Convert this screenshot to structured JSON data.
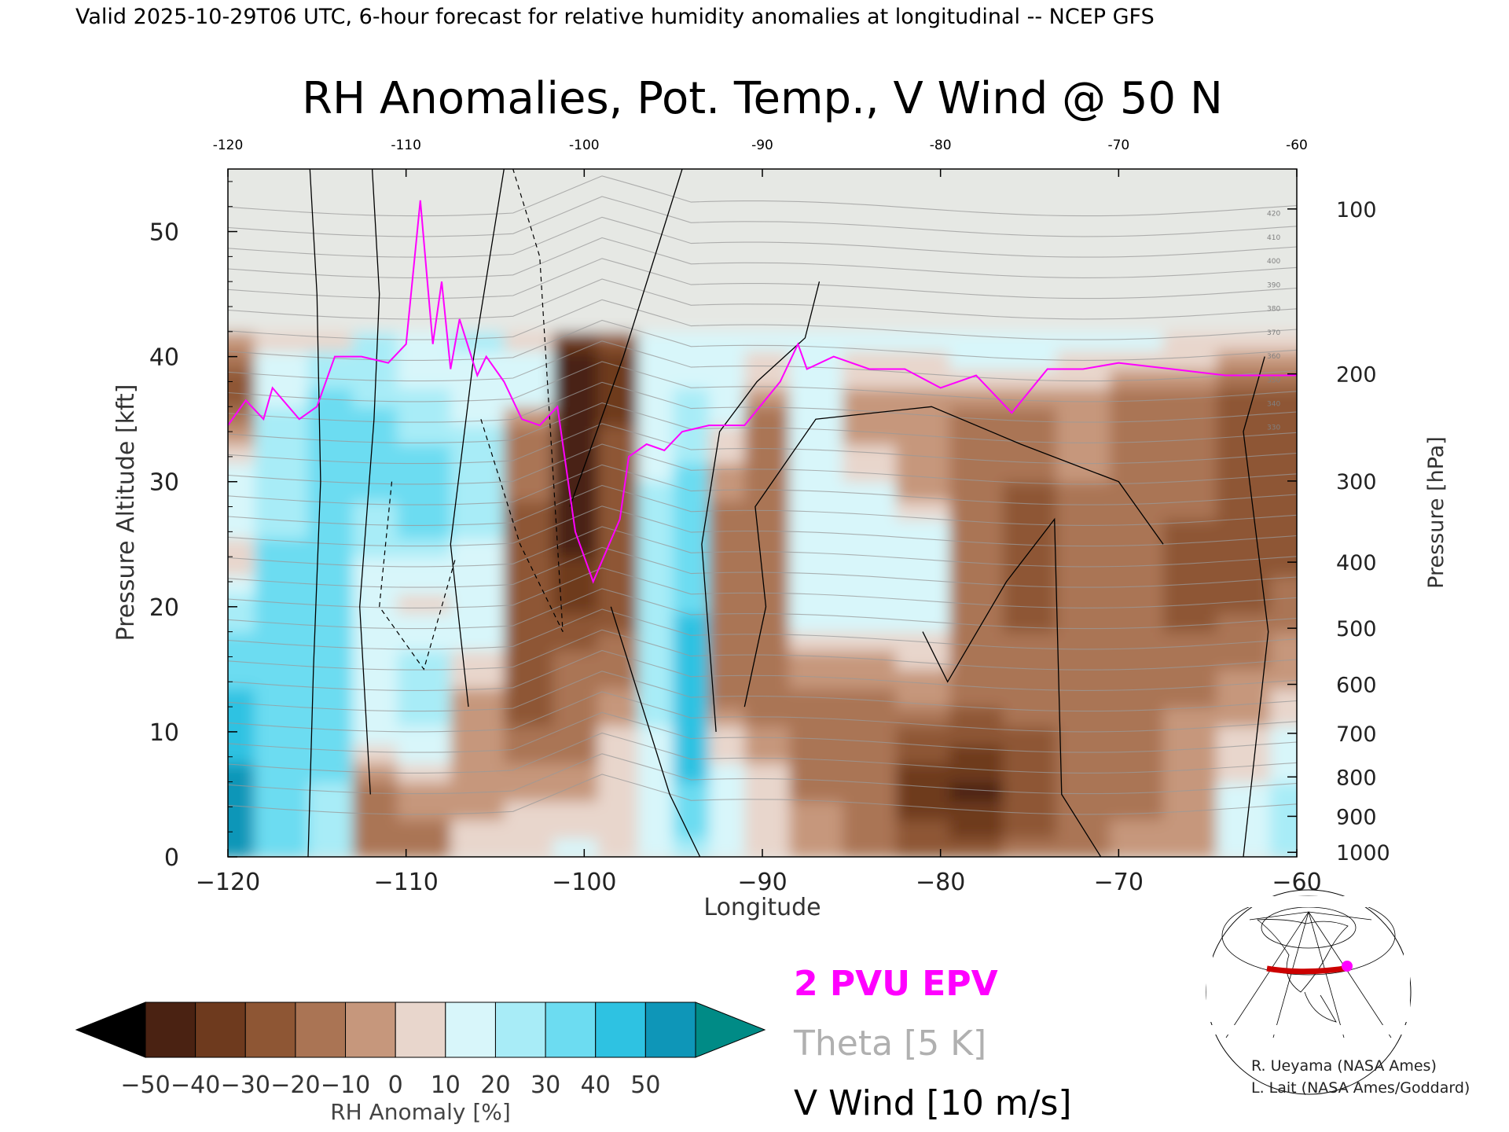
{
  "header": "Valid 2025-10-29T06 UTC, 6-hour forecast for relative humidity anomalies at longitudinal -- NCEP GFS",
  "colors": {
    "epv": "#ff00ff",
    "theta": "#a0a0a0",
    "wind": "#000000",
    "path_line": "#cc0000",
    "path_marker": "#ff00ff"
  },
  "chart_data": {
    "type": "heatmap",
    "title": "RH Anomalies, Pot. Temp., V Wind @ 50 N",
    "xlabel": "Longitude",
    "ylabel_left": "Pressure Altitude [kft]",
    "ylabel_right": "Pressure [hPa]",
    "xlim": [
      -120,
      -60
    ],
    "ylim": [
      0,
      55
    ],
    "x_ticks": [
      -120,
      -110,
      -100,
      -90,
      -80,
      -70,
      -60
    ],
    "x_tick_labels_bottom": [
      "−120",
      "−110",
      "−100",
      "−90",
      "−80",
      "−70",
      "−60"
    ],
    "x_tick_labels_top": [
      "-120",
      "-110",
      "-100",
      "-90",
      "-80",
      "-70",
      "-60"
    ],
    "y_ticks": [
      0,
      10,
      20,
      30,
      40,
      50
    ],
    "pressure_ticks": [
      {
        "hpa": 100,
        "label": "100"
      },
      {
        "hpa": 200,
        "label": "200"
      },
      {
        "hpa": 300,
        "label": "300"
      },
      {
        "hpa": 400,
        "label": "400"
      },
      {
        "hpa": 500,
        "label": "500"
      },
      {
        "hpa": 600,
        "label": "600"
      },
      {
        "hpa": 700,
        "label": "700"
      },
      {
        "hpa": 800,
        "label": "800"
      },
      {
        "hpa": 900,
        "label": "900"
      },
      {
        "hpa": 1000,
        "label": "1000"
      }
    ],
    "theta_labels": [
      "420",
      "410",
      "400",
      "390",
      "380",
      "370",
      "360",
      "350",
      "340",
      "330"
    ],
    "rh_columns": [
      {
        "lon": -120,
        "profile": [
          [
            0,
            50
          ],
          [
            8,
            50
          ],
          [
            18,
            30
          ],
          [
            24,
            5
          ],
          [
            30,
            20
          ],
          [
            38,
            -30
          ],
          [
            42,
            0
          ]
        ]
      },
      {
        "lon": -117,
        "profile": [
          [
            0,
            35
          ],
          [
            10,
            30
          ],
          [
            25,
            30
          ],
          [
            34,
            25
          ],
          [
            40,
            10
          ],
          [
            42,
            0
          ]
        ]
      },
      {
        "lon": -114,
        "profile": [
          [
            0,
            20
          ],
          [
            10,
            35
          ],
          [
            25,
            40
          ],
          [
            35,
            35
          ],
          [
            40,
            25
          ],
          [
            42,
            0
          ]
        ]
      },
      {
        "lon": -112,
        "profile": [
          [
            0,
            -10
          ],
          [
            5,
            -20
          ],
          [
            10,
            20
          ],
          [
            20,
            10
          ],
          [
            28,
            30
          ],
          [
            36,
            30
          ],
          [
            40,
            20
          ]
        ]
      },
      {
        "lon": -109,
        "profile": [
          [
            0,
            -20
          ],
          [
            8,
            10
          ],
          [
            14,
            30
          ],
          [
            20,
            5
          ],
          [
            28,
            40
          ],
          [
            36,
            25
          ],
          [
            40,
            15
          ]
        ]
      },
      {
        "lon": -106,
        "profile": [
          [
            0,
            5
          ],
          [
            10,
            -10
          ],
          [
            16,
            10
          ],
          [
            24,
            15
          ],
          [
            30,
            30
          ],
          [
            36,
            15
          ],
          [
            40,
            20
          ]
        ]
      },
      {
        "lon": -103,
        "profile": [
          [
            0,
            10
          ],
          [
            8,
            -10
          ],
          [
            14,
            -30
          ],
          [
            20,
            -30
          ],
          [
            28,
            -20
          ],
          [
            34,
            -10
          ],
          [
            38,
            20
          ],
          [
            42,
            0
          ]
        ]
      },
      {
        "lon": -100.5,
        "profile": [
          [
            0,
            15
          ],
          [
            8,
            -10
          ],
          [
            16,
            -20
          ],
          [
            24,
            -40
          ],
          [
            32,
            -45
          ],
          [
            38,
            -50
          ],
          [
            42,
            -35
          ],
          [
            45,
            0
          ]
        ]
      },
      {
        "lon": -98,
        "profile": [
          [
            0,
            10
          ],
          [
            8,
            5
          ],
          [
            14,
            -10
          ],
          [
            22,
            -30
          ],
          [
            32,
            -20
          ],
          [
            38,
            -40
          ],
          [
            42,
            -20
          ],
          [
            45,
            0
          ]
        ]
      },
      {
        "lon": -96,
        "profile": [
          [
            0,
            20
          ],
          [
            8,
            10
          ],
          [
            14,
            30
          ],
          [
            22,
            20
          ],
          [
            30,
            20
          ],
          [
            36,
            10
          ],
          [
            40,
            10
          ]
        ]
      },
      {
        "lon": -94,
        "profile": [
          [
            0,
            25
          ],
          [
            8,
            45
          ],
          [
            16,
            45
          ],
          [
            24,
            35
          ],
          [
            32,
            30
          ],
          [
            36,
            25
          ],
          [
            40,
            15
          ]
        ]
      },
      {
        "lon": -92,
        "profile": [
          [
            0,
            10
          ],
          [
            6,
            20
          ],
          [
            12,
            -10
          ],
          [
            20,
            -20
          ],
          [
            28,
            -10
          ],
          [
            36,
            15
          ],
          [
            40,
            15
          ]
        ]
      },
      {
        "lon": -90,
        "profile": [
          [
            0,
            10
          ],
          [
            6,
            5
          ],
          [
            12,
            -15
          ],
          [
            20,
            -15
          ],
          [
            28,
            -15
          ],
          [
            36,
            -10
          ],
          [
            40,
            10
          ]
        ]
      },
      {
        "lon": -87,
        "profile": [
          [
            0,
            0
          ],
          [
            6,
            -15
          ],
          [
            12,
            -15
          ],
          [
            20,
            15
          ],
          [
            28,
            10
          ],
          [
            34,
            20
          ],
          [
            40,
            15
          ]
        ]
      },
      {
        "lon": -84,
        "profile": [
          [
            0,
            -10
          ],
          [
            6,
            -20
          ],
          [
            12,
            -20
          ],
          [
            18,
            10
          ],
          [
            24,
            20
          ],
          [
            30,
            10
          ],
          [
            36,
            -10
          ],
          [
            40,
            10
          ]
        ]
      },
      {
        "lon": -81,
        "profile": [
          [
            0,
            -20
          ],
          [
            5,
            -40
          ],
          [
            10,
            -20
          ],
          [
            18,
            10
          ],
          [
            24,
            20
          ],
          [
            30,
            -5
          ],
          [
            36,
            -10
          ],
          [
            40,
            10
          ]
        ]
      },
      {
        "lon": -78,
        "profile": [
          [
            0,
            -20
          ],
          [
            5,
            -45
          ],
          [
            10,
            -25
          ],
          [
            18,
            -10
          ],
          [
            24,
            -15
          ],
          [
            30,
            -15
          ],
          [
            36,
            -15
          ],
          [
            40,
            15
          ]
        ]
      },
      {
        "lon": -75,
        "profile": [
          [
            0,
            -15
          ],
          [
            5,
            -30
          ],
          [
            10,
            -20
          ],
          [
            18,
            -20
          ],
          [
            24,
            -25
          ],
          [
            30,
            -20
          ],
          [
            36,
            -15
          ],
          [
            40,
            15
          ]
        ]
      },
      {
        "lon": -72,
        "profile": [
          [
            0,
            -10
          ],
          [
            6,
            -20
          ],
          [
            12,
            -15
          ],
          [
            18,
            -15
          ],
          [
            24,
            -15
          ],
          [
            30,
            -10
          ],
          [
            36,
            -10
          ],
          [
            40,
            10
          ]
        ]
      },
      {
        "lon": -69,
        "profile": [
          [
            0,
            -5
          ],
          [
            6,
            -15
          ],
          [
            12,
            -10
          ],
          [
            18,
            -15
          ],
          [
            24,
            -20
          ],
          [
            30,
            -15
          ],
          [
            36,
            -15
          ],
          [
            40,
            10
          ]
        ]
      },
      {
        "lon": -66,
        "profile": [
          [
            0,
            0
          ],
          [
            6,
            -10
          ],
          [
            12,
            -10
          ],
          [
            18,
            -20
          ],
          [
            24,
            -25
          ],
          [
            30,
            -15
          ],
          [
            36,
            -20
          ],
          [
            40,
            5
          ]
        ]
      },
      {
        "lon": -63,
        "profile": [
          [
            0,
            20
          ],
          [
            6,
            10
          ],
          [
            12,
            -5
          ],
          [
            18,
            -15
          ],
          [
            24,
            -30
          ],
          [
            30,
            -20
          ],
          [
            36,
            -25
          ],
          [
            40,
            0
          ]
        ]
      },
      {
        "lon": -60,
        "profile": [
          [
            0,
            30
          ],
          [
            6,
            20
          ],
          [
            12,
            5
          ],
          [
            18,
            -10
          ],
          [
            24,
            -25
          ],
          [
            30,
            -20
          ],
          [
            36,
            -25
          ],
          [
            40,
            0
          ]
        ]
      }
    ],
    "epv_2pvu": [
      [
        -120,
        34.5
      ],
      [
        -119,
        36.5
      ],
      [
        -118,
        35
      ],
      [
        -117.5,
        37.5
      ],
      [
        -116,
        35
      ],
      [
        -115,
        36
      ],
      [
        -114,
        40
      ],
      [
        -112.5,
        40
      ],
      [
        -111,
        39.5
      ],
      [
        -110,
        41
      ],
      [
        -109.2,
        52.5
      ],
      [
        -108.5,
        41
      ],
      [
        -108,
        46
      ],
      [
        -107.5,
        39
      ],
      [
        -107,
        43
      ],
      [
        -106,
        38.5
      ],
      [
        -105.5,
        40
      ],
      [
        -104.5,
        38
      ],
      [
        -103.5,
        35
      ],
      [
        -102.5,
        34.5
      ],
      [
        -101.5,
        36
      ],
      [
        -100.5,
        26
      ],
      [
        -99.5,
        22
      ],
      [
        -98,
        27
      ],
      [
        -97.5,
        32
      ],
      [
        -96.5,
        33
      ],
      [
        -95.5,
        32.5
      ],
      [
        -94.5,
        34
      ],
      [
        -93,
        34.5
      ],
      [
        -91,
        34.5
      ],
      [
        -89,
        38
      ],
      [
        -88,
        41
      ],
      [
        -87.5,
        39
      ],
      [
        -86,
        40
      ],
      [
        -84,
        39
      ],
      [
        -82,
        39
      ],
      [
        -80,
        37.5
      ],
      [
        -78,
        38.5
      ],
      [
        -76,
        35.5
      ],
      [
        -74,
        39
      ],
      [
        -72,
        39
      ],
      [
        -70,
        39.5
      ],
      [
        -67,
        39
      ],
      [
        -64,
        38.5
      ],
      [
        -61.5,
        38.5
      ],
      [
        -60,
        38.5
      ]
    ],
    "legend_epv": "2 PVU EPV",
    "legend_theta": "Theta [5 K]",
    "legend_wind": "V Wind [10 m/s]",
    "colorbar": {
      "label": "RH Anomaly [%]",
      "levels": [
        -50,
        -40,
        -30,
        -20,
        -10,
        0,
        10,
        20,
        30,
        40,
        50
      ],
      "tick_labels": [
        "−50",
        "−40",
        "−30",
        "−20",
        "−10",
        "0",
        "10",
        "20",
        "30",
        "40",
        "50"
      ],
      "colors": [
        "#4a2212",
        "#6e3a1e",
        "#8e5634",
        "#aa7454",
        "#c6977c",
        "#e8d6cc",
        "#d8f6fa",
        "#a8ecf7",
        "#6cdcf1",
        "#2ec2e2",
        "#0e96b8"
      ],
      "under_color": "#000000",
      "over_color": "#008b86"
    }
  },
  "credits": [
    "R. Ueyama (NASA Ames)",
    "L. Lait (NASA Ames/Goddard)"
  ]
}
